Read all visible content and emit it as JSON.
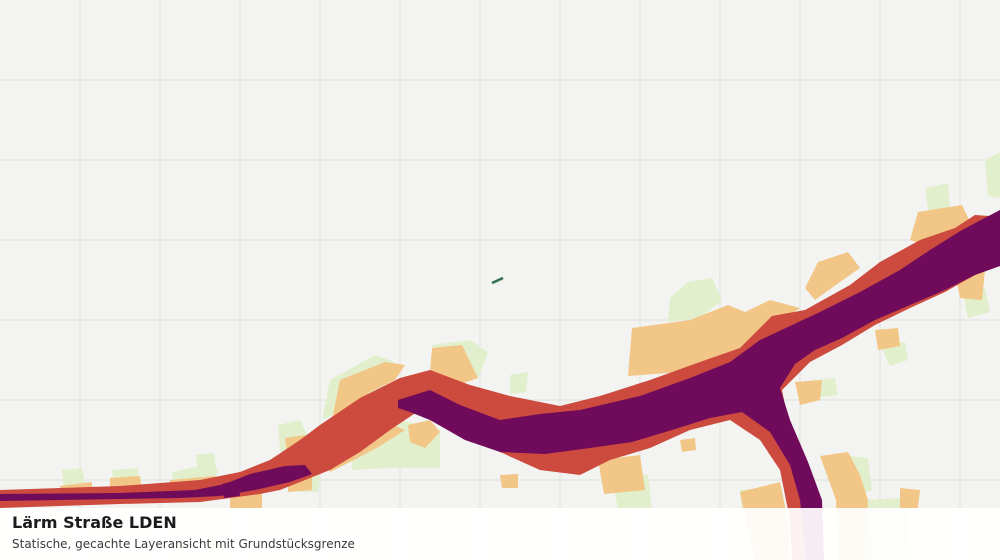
{
  "map": {
    "layer_title": "Lärm Straße LDEN",
    "layer_subtitle": "Statische, gecachte Layeransicht mit Grundstücksgrenze",
    "colors": {
      "background": "#f3f4f2",
      "grid": "#dedfdd",
      "band_light": "#e2efcc",
      "band_orange": "#f2c686",
      "band_red": "#cc4a3e",
      "band_purple": "#700b5c",
      "parcel_outline": "#2f6b4f"
    },
    "legend_classes": [
      "band_light",
      "band_orange",
      "band_red",
      "band_purple"
    ]
  }
}
